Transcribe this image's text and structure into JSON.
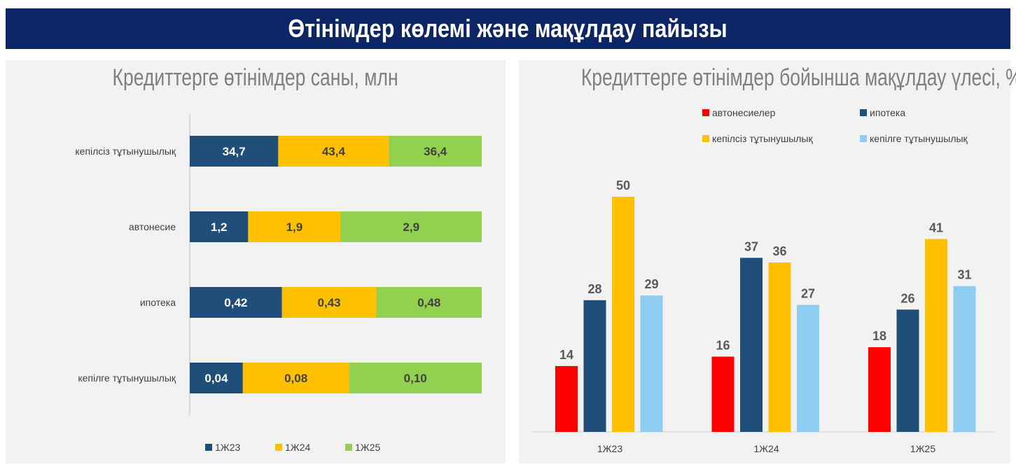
{
  "header": {
    "title": "Өтінімдер көлемі және мақұлдау пайызы"
  },
  "colors": {
    "1Ж23": "#1f4e79",
    "1Ж24": "#ffc000",
    "1Ж25": "#92d050",
    "автонесиелер": "#ff0000",
    "ипотека": "#1f4e79",
    "кепілсіз тұтынушылық": "#ffc000",
    "кепілге тұтынушылық": "#8ecdf0"
  },
  "chart_data": [
    {
      "type": "bar",
      "stacked": "percent",
      "orientation": "horizontal",
      "title": "Кредиттерге өтінімдер саны, млн",
      "categories": [
        "кепілсіз тұтынушылық",
        "автонесие",
        "ипотека",
        "кепілге тұтынушылық"
      ],
      "series": [
        {
          "name": "1Ж23",
          "values": [
            34.7,
            1.2,
            0.42,
            0.04
          ],
          "labels": [
            "34,7",
            "1,2",
            "0,42",
            "0,04"
          ]
        },
        {
          "name": "1Ж24",
          "values": [
            43.4,
            1.9,
            0.43,
            0.08
          ],
          "labels": [
            "43,4",
            "1,9",
            "0,43",
            "0,08"
          ]
        },
        {
          "name": "1Ж25",
          "values": [
            36.4,
            2.9,
            0.48,
            0.1
          ],
          "labels": [
            "36,4",
            "2,9",
            "0,48",
            "0,10"
          ]
        }
      ],
      "legend": "bottom"
    },
    {
      "type": "bar",
      "title": "Кредиттерге өтінімдер бойынша мақұлдау үлесі, %",
      "categories": [
        "1Ж23",
        "1Ж24",
        "1Ж25"
      ],
      "series": [
        {
          "name": "автонесиелер",
          "values": [
            14,
            16,
            18
          ]
        },
        {
          "name": "ипотека",
          "values": [
            28,
            37,
            26
          ]
        },
        {
          "name": "кепілсіз тұтынушылық",
          "values": [
            50,
            36,
            41
          ]
        },
        {
          "name": "кепілге тұтынушылық",
          "values": [
            29,
            27,
            31
          ]
        }
      ],
      "ylim": [
        0,
        50
      ],
      "legend": "top"
    }
  ]
}
